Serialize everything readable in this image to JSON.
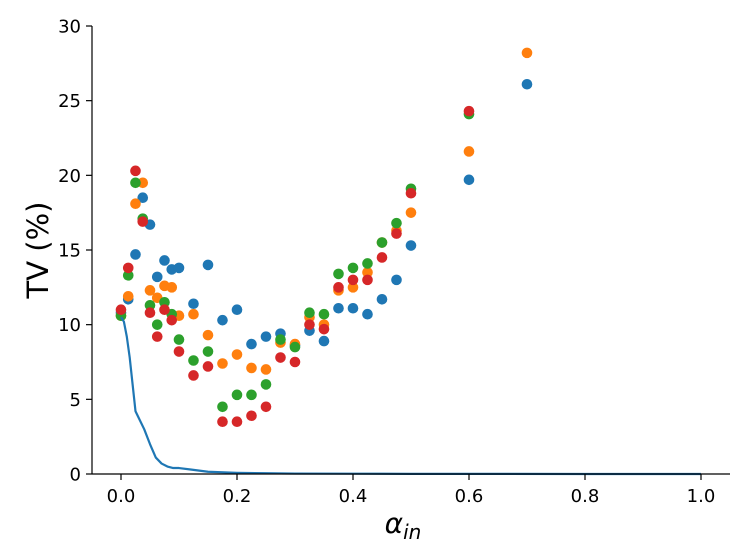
{
  "chart_data": {
    "type": "scatter",
    "title": "",
    "xlabel": "α",
    "xlabel_sub": "in",
    "ylabel": "TV (%)",
    "xlim": [
      -0.05,
      1.05
    ],
    "ylim": [
      0,
      30
    ],
    "xticks": [
      0.0,
      0.2,
      0.4,
      0.6,
      0.8,
      1.0
    ],
    "xtick_labels": [
      "0.0",
      "0.2",
      "0.4",
      "0.6",
      "0.8",
      "1.0"
    ],
    "yticks": [
      0,
      5,
      10,
      15,
      20,
      25,
      30
    ],
    "ytick_labels": [
      "0",
      "5",
      "10",
      "15",
      "20",
      "25",
      "30"
    ],
    "grid": false,
    "legend": "none",
    "line": {
      "color": "#1f77b4",
      "x": [
        0.0,
        0.005,
        0.01,
        0.015,
        0.02,
        0.025,
        0.03,
        0.04,
        0.05,
        0.06,
        0.07,
        0.08,
        0.09,
        0.1,
        0.12,
        0.15,
        0.2,
        0.25,
        0.3,
        0.4,
        0.5,
        0.6,
        0.8,
        1.0
      ],
      "y": [
        10.5,
        10.2,
        9.2,
        7.8,
        6.0,
        4.2,
        3.8,
        3.0,
        2.0,
        1.1,
        0.7,
        0.5,
        0.4,
        0.4,
        0.3,
        0.15,
        0.08,
        0.05,
        0.03,
        0.02,
        0.01,
        0.01,
        0.0,
        0.0
      ]
    },
    "series": [
      {
        "color": "#1f77b4",
        "points": [
          [
            0.0,
            10.8
          ],
          [
            0.0125,
            11.7
          ],
          [
            0.025,
            14.7
          ],
          [
            0.0375,
            18.5
          ],
          [
            0.05,
            16.7
          ],
          [
            0.0625,
            13.2
          ],
          [
            0.075,
            14.3
          ],
          [
            0.0875,
            13.7
          ],
          [
            0.1,
            13.8
          ],
          [
            0.125,
            11.4
          ],
          [
            0.15,
            14.0
          ],
          [
            0.175,
            10.3
          ],
          [
            0.2,
            11.0
          ],
          [
            0.225,
            8.7
          ],
          [
            0.25,
            9.2
          ],
          [
            0.275,
            9.4
          ],
          [
            0.3,
            8.6
          ],
          [
            0.325,
            9.6
          ],
          [
            0.35,
            8.9
          ],
          [
            0.375,
            11.1
          ],
          [
            0.4,
            11.1
          ],
          [
            0.425,
            10.7
          ],
          [
            0.45,
            11.7
          ],
          [
            0.475,
            13.0
          ],
          [
            0.5,
            15.3
          ],
          [
            0.6,
            19.7
          ],
          [
            0.7,
            26.1
          ]
        ]
      },
      {
        "color": "#ff7f0e",
        "points": [
          [
            0.0,
            10.6
          ],
          [
            0.0125,
            11.9
          ],
          [
            0.025,
            18.1
          ],
          [
            0.0375,
            19.5
          ],
          [
            0.05,
            12.3
          ],
          [
            0.0625,
            11.8
          ],
          [
            0.075,
            12.6
          ],
          [
            0.0875,
            12.5
          ],
          [
            0.1,
            10.6
          ],
          [
            0.125,
            10.7
          ],
          [
            0.15,
            9.3
          ],
          [
            0.175,
            7.4
          ],
          [
            0.2,
            8.0
          ],
          [
            0.225,
            7.1
          ],
          [
            0.25,
            7.0
          ],
          [
            0.275,
            8.8
          ],
          [
            0.3,
            8.7
          ],
          [
            0.325,
            10.5
          ],
          [
            0.35,
            10.0
          ],
          [
            0.375,
            12.3
          ],
          [
            0.4,
            12.5
          ],
          [
            0.425,
            13.5
          ],
          [
            0.45,
            15.5
          ],
          [
            0.475,
            16.3
          ],
          [
            0.5,
            17.5
          ],
          [
            0.6,
            21.6
          ],
          [
            0.7,
            28.2
          ]
        ]
      },
      {
        "color": "#2ca02c",
        "points": [
          [
            0.0,
            10.6
          ],
          [
            0.0125,
            13.3
          ],
          [
            0.025,
            19.5
          ],
          [
            0.0375,
            17.1
          ],
          [
            0.05,
            11.3
          ],
          [
            0.0625,
            10.0
          ],
          [
            0.075,
            11.5
          ],
          [
            0.0875,
            10.7
          ],
          [
            0.1,
            9.0
          ],
          [
            0.125,
            7.6
          ],
          [
            0.15,
            8.2
          ],
          [
            0.175,
            4.5
          ],
          [
            0.2,
            5.3
          ],
          [
            0.225,
            5.3
          ],
          [
            0.25,
            6.0
          ],
          [
            0.275,
            9.0
          ],
          [
            0.3,
            8.5
          ],
          [
            0.325,
            10.8
          ],
          [
            0.35,
            10.7
          ],
          [
            0.375,
            13.4
          ],
          [
            0.4,
            13.8
          ],
          [
            0.425,
            14.1
          ],
          [
            0.45,
            15.5
          ],
          [
            0.475,
            16.8
          ],
          [
            0.5,
            19.1
          ],
          [
            0.6,
            24.1
          ]
        ]
      },
      {
        "color": "#d62728",
        "points": [
          [
            0.0,
            11.0
          ],
          [
            0.0125,
            13.8
          ],
          [
            0.025,
            20.3
          ],
          [
            0.0375,
            16.9
          ],
          [
            0.05,
            10.8
          ],
          [
            0.0625,
            9.2
          ],
          [
            0.075,
            11.0
          ],
          [
            0.0875,
            10.3
          ],
          [
            0.1,
            8.2
          ],
          [
            0.125,
            6.6
          ],
          [
            0.15,
            7.2
          ],
          [
            0.175,
            3.5
          ],
          [
            0.2,
            3.5
          ],
          [
            0.225,
            3.9
          ],
          [
            0.25,
            4.5
          ],
          [
            0.275,
            7.8
          ],
          [
            0.3,
            7.5
          ],
          [
            0.325,
            10.0
          ],
          [
            0.35,
            9.7
          ],
          [
            0.375,
            12.5
          ],
          [
            0.4,
            13.0
          ],
          [
            0.425,
            13.0
          ],
          [
            0.45,
            14.5
          ],
          [
            0.475,
            16.1
          ],
          [
            0.5,
            18.8
          ],
          [
            0.6,
            24.3
          ]
        ]
      }
    ]
  }
}
